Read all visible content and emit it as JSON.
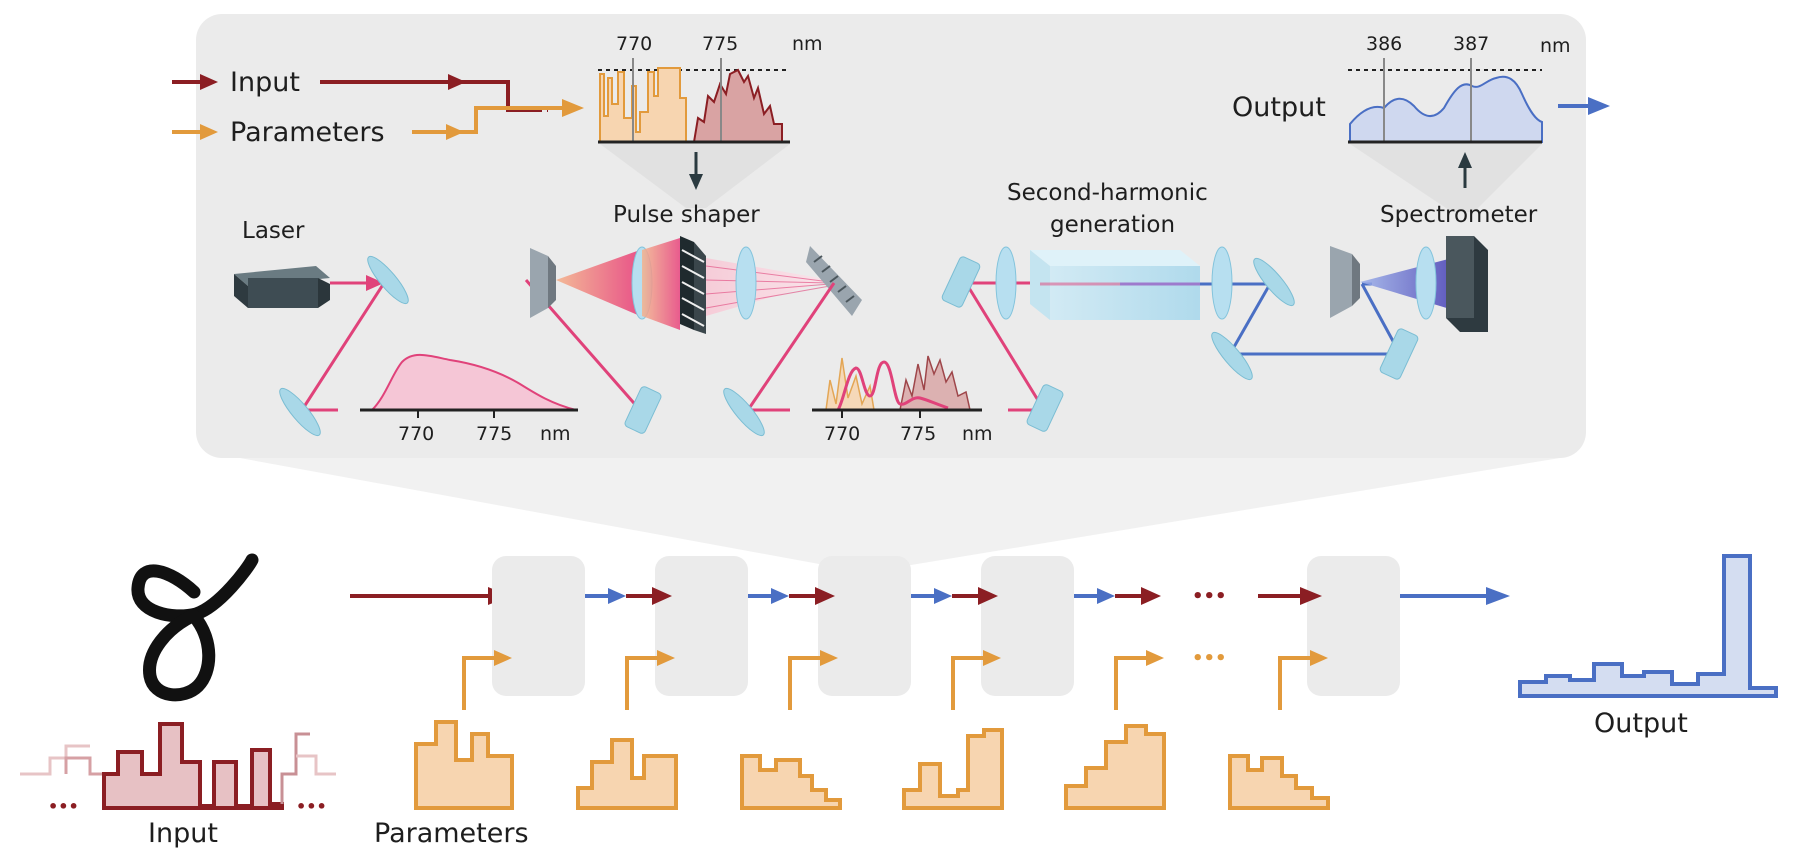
{
  "top": {
    "input_label": "Input",
    "parameters_label": "Parameters",
    "output_label": "Output",
    "laser_label": "Laser",
    "pulse_shaper_label": "Pulse shaper",
    "shg_line1": "Second-harmonic",
    "shg_line2": "generation",
    "spectrometer_label": "Spectrometer",
    "shaper_spectrum": {
      "tick1": "770",
      "tick2": "775",
      "unit": "nm"
    },
    "output_spectrum": {
      "tick1": "386",
      "tick2": "387",
      "unit": "nm"
    },
    "laser_spectrum": {
      "tick1": "770",
      "tick2": "775",
      "unit": "nm"
    },
    "shaped_spectrum": {
      "tick1": "770",
      "tick2": "775",
      "unit": "nm"
    }
  },
  "bottom": {
    "input_label": "Input",
    "parameters_label": "Parameters",
    "output_label": "Output",
    "continuation_dots": "•••",
    "input_ellipsis": "•••"
  },
  "colors": {
    "input": "#8b1e23",
    "parameters": "#e29a3c",
    "output": "#4a6fc4",
    "beam": "#e0427a",
    "panel": "#ebebeb",
    "optic": "#a9d8e8"
  }
}
